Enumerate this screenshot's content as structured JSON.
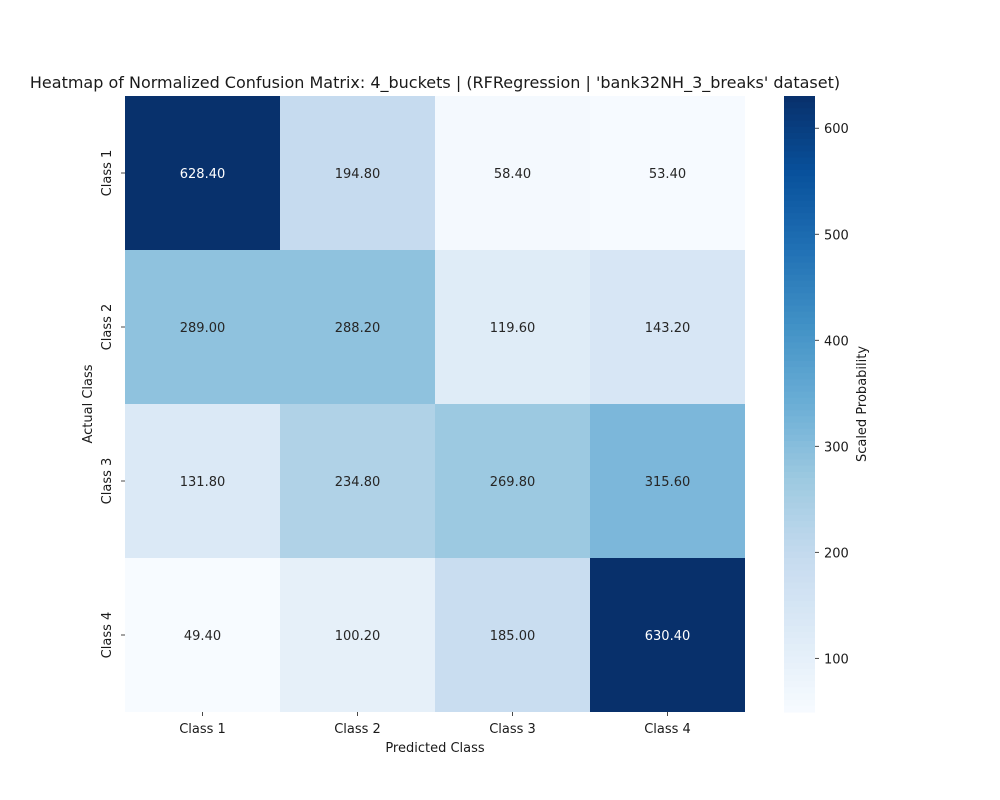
{
  "chart_data": {
    "type": "heatmap",
    "title": "Heatmap of Normalized Confusion Matrix: 4_buckets | (RFRegression | 'bank32NH_3_breaks' dataset)",
    "xlabel": "Predicted Class",
    "ylabel": "Actual Class",
    "x_categories": [
      "Class 1",
      "Class 2",
      "Class 3",
      "Class 4"
    ],
    "y_categories": [
      "Class 1",
      "Class 2",
      "Class 3",
      "Class 4"
    ],
    "values": [
      [
        628.4,
        194.8,
        58.4,
        53.4
      ],
      [
        289.0,
        288.2,
        119.6,
        143.2
      ],
      [
        131.8,
        234.8,
        269.8,
        315.6
      ],
      [
        49.4,
        100.2,
        185.0,
        630.4
      ]
    ],
    "value_labels": [
      [
        "628.40",
        "194.80",
        "58.40",
        "53.40"
      ],
      [
        "289.00",
        "288.20",
        "119.60",
        "143.20"
      ],
      [
        "131.80",
        "234.80",
        "269.80",
        "315.60"
      ],
      [
        "49.40",
        "100.20",
        "185.00",
        "630.40"
      ]
    ],
    "colorbar": {
      "label": "Scaled Probability",
      "range": [
        49.4,
        630.4
      ],
      "ticks": [
        100,
        200,
        300,
        400,
        500,
        600
      ],
      "tick_labels": [
        "100",
        "200",
        "300",
        "400",
        "500",
        "600"
      ],
      "colormap": "Blues"
    },
    "grid": false
  }
}
